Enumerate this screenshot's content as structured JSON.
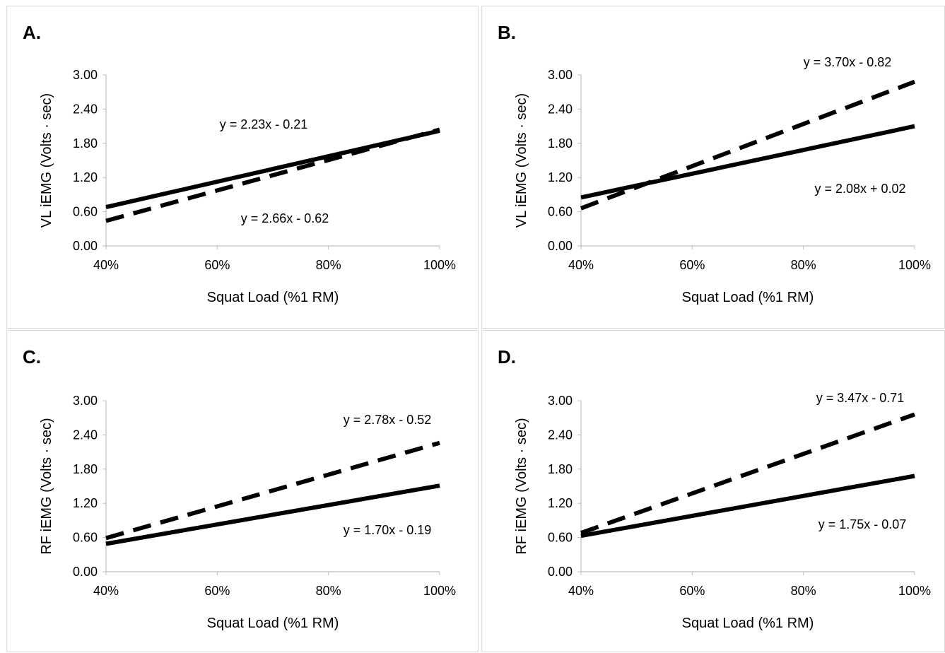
{
  "chart_data": [
    {
      "type": "line",
      "panel_label": "A.",
      "xlabel": "Squat Load (%1 RM)",
      "ylabel": "VL iEMG (Volts · sec)",
      "xlim": [
        0.4,
        1.0
      ],
      "ylim": [
        0,
        3
      ],
      "x_ticks": [
        "40%",
        "60%",
        "80%",
        "100%"
      ],
      "y_ticks": [
        "0.00",
        "0.60",
        "1.20",
        "1.80",
        "2.40",
        "3.00"
      ],
      "series": [
        {
          "style": "solid",
          "x": [
            0.4,
            1.0
          ],
          "y": [
            0.68,
            2.02
          ],
          "equation": "y = 2.23x - 0.21"
        },
        {
          "style": "dashed",
          "x": [
            0.4,
            1.0
          ],
          "y": [
            0.44,
            2.04
          ],
          "equation": "y = 2.66x - 0.62"
        }
      ]
    },
    {
      "type": "line",
      "panel_label": "B.",
      "xlabel": "Squat Load (%1 RM)",
      "ylabel": "VL iEMG (Volts · sec)",
      "xlim": [
        0.4,
        1.0
      ],
      "ylim": [
        0,
        3
      ],
      "x_ticks": [
        "40%",
        "60%",
        "80%",
        "100%"
      ],
      "y_ticks": [
        "0.00",
        "0.60",
        "1.20",
        "1.80",
        "2.40",
        "3.00"
      ],
      "series": [
        {
          "style": "solid",
          "x": [
            0.4,
            1.0
          ],
          "y": [
            0.85,
            2.1
          ],
          "equation": "y = 2.08x + 0.02"
        },
        {
          "style": "dashed",
          "x": [
            0.4,
            1.0
          ],
          "y": [
            0.66,
            2.88
          ],
          "equation": "y = 3.70x - 0.82"
        }
      ]
    },
    {
      "type": "line",
      "panel_label": "C.",
      "xlabel": "Squat Load (%1 RM)",
      "ylabel": "RF iEMG (Volts · sec)",
      "xlim": [
        0.4,
        1.0
      ],
      "ylim": [
        0,
        3
      ],
      "x_ticks": [
        "40%",
        "60%",
        "80%",
        "100%"
      ],
      "y_ticks": [
        "0.00",
        "0.60",
        "1.20",
        "1.80",
        "2.40",
        "3.00"
      ],
      "series": [
        {
          "style": "solid",
          "x": [
            0.4,
            1.0
          ],
          "y": [
            0.49,
            1.51
          ],
          "equation": "y = 1.70x - 0.19"
        },
        {
          "style": "dashed",
          "x": [
            0.4,
            1.0
          ],
          "y": [
            0.59,
            2.26
          ],
          "equation": "y = 2.78x - 0.52"
        }
      ]
    },
    {
      "type": "line",
      "panel_label": "D.",
      "xlabel": "Squat Load (%1 RM)",
      "ylabel": "RF iEMG (Volts · sec)",
      "xlim": [
        0.4,
        1.0
      ],
      "ylim": [
        0,
        3
      ],
      "x_ticks": [
        "40%",
        "60%",
        "80%",
        "100%"
      ],
      "y_ticks": [
        "0.00",
        "0.60",
        "1.20",
        "1.80",
        "2.40",
        "3.00"
      ],
      "series": [
        {
          "style": "solid",
          "x": [
            0.4,
            1.0
          ],
          "y": [
            0.63,
            1.68
          ],
          "equation": "y = 1.75x - 0.07"
        },
        {
          "style": "dashed",
          "x": [
            0.4,
            1.0
          ],
          "y": [
            0.68,
            2.76
          ],
          "equation": "y = 3.47x - 0.71"
        }
      ]
    }
  ]
}
